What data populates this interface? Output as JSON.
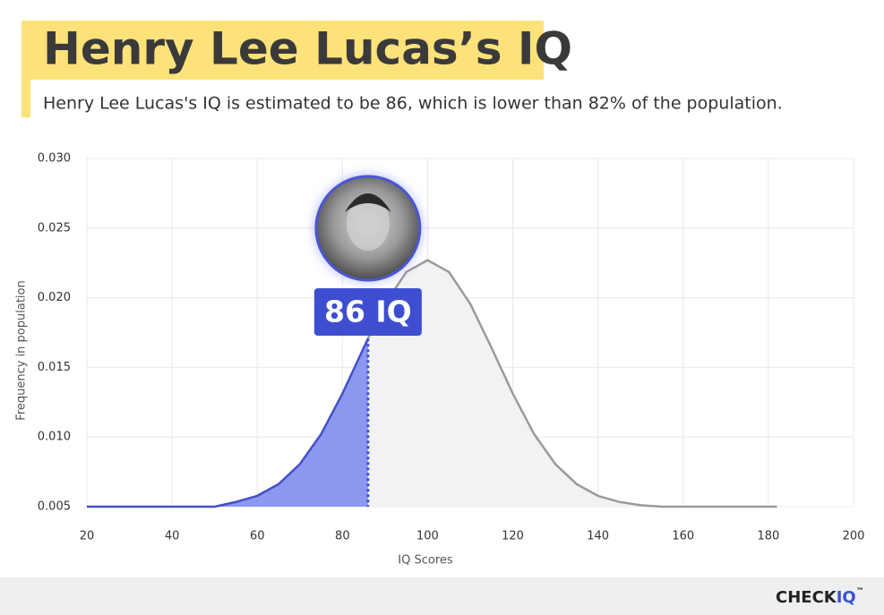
{
  "chart_data": {
    "type": "line",
    "title": "Henry Lee Lucas’s IQ",
    "subtitle": "Henry Lee Lucas's IQ is estimated to be 86, which is lower than 82% of the population.",
    "x_label": "IQ Scores",
    "y_label": "Frequency in population",
    "x": [
      20,
      25,
      30,
      35,
      40,
      45,
      50,
      55,
      60,
      65,
      70,
      75,
      80,
      85,
      86,
      90,
      95,
      100,
      105,
      110,
      115,
      120,
      125,
      130,
      135,
      140,
      145,
      150,
      155,
      160,
      165,
      170,
      175,
      180,
      182
    ],
    "series": [
      {
        "name": "Frequency in population",
        "color": "#9a9a9a",
        "values": [
          0.005,
          0.005,
          0.005,
          0.005,
          0.005,
          0.005,
          0.005,
          0.00534,
          0.00578,
          0.00662,
          0.00805,
          0.01022,
          0.01311,
          0.01641,
          0.01707,
          0.01957,
          0.02185,
          0.0227,
          0.02185,
          0.01957,
          0.01641,
          0.01311,
          0.01022,
          0.00805,
          0.00662,
          0.00578,
          0.00534,
          0.0051,
          0.005,
          0.005,
          0.005,
          0.005,
          0.005,
          0.005,
          0.005
        ]
      }
    ],
    "highlight_color": "#4350c8",
    "marker": {
      "value": 86,
      "label": "86 IQ"
    },
    "xlim": [
      20,
      200
    ],
    "xticks": [
      20,
      40,
      60,
      80,
      100,
      120,
      140,
      160,
      180,
      200
    ],
    "ylim": [
      0.005,
      0.03
    ],
    "yticks": [
      {
        "value": 0.005,
        "label": "0.005"
      },
      {
        "value": 0.01,
        "label": "0.010"
      },
      {
        "value": 0.015,
        "label": "0.015"
      },
      {
        "value": 0.02,
        "label": "0.020"
      },
      {
        "value": 0.025,
        "label": "0.025"
      },
      {
        "value": 0.03,
        "label": "0.030"
      }
    ],
    "grid": true,
    "brand": {
      "name": "CHECK",
      "accent": "IQ",
      "mark": "™"
    }
  }
}
